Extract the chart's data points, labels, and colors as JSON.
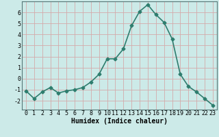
{
  "xlabel": "Humidex (Indice chaleur)",
  "x": [
    0,
    1,
    2,
    3,
    4,
    5,
    6,
    7,
    8,
    9,
    10,
    11,
    12,
    13,
    14,
    15,
    16,
    17,
    18,
    19,
    20,
    21,
    22,
    23
  ],
  "y": [
    -1.1,
    -1.8,
    -1.2,
    -0.8,
    -1.3,
    -1.1,
    -1.0,
    -0.8,
    -0.3,
    0.4,
    1.8,
    1.8,
    2.7,
    4.8,
    6.1,
    6.7,
    5.8,
    5.1,
    3.6,
    0.4,
    -0.7,
    -1.2,
    -1.8,
    -2.4
  ],
  "line_color": "#2e7d6e",
  "marker": "D",
  "marker_size": 2.5,
  "line_width": 1.2,
  "bg_color": "#cceae8",
  "grid_color": "#d4aaaa",
  "ylim": [
    -2.8,
    7.0
  ],
  "xlim": [
    -0.5,
    23.5
  ],
  "yticks": [
    -2,
    -1,
    0,
    1,
    2,
    3,
    4,
    5,
    6
  ],
  "xticks": [
    0,
    1,
    2,
    3,
    4,
    5,
    6,
    7,
    8,
    9,
    10,
    11,
    12,
    13,
    14,
    15,
    16,
    17,
    18,
    19,
    20,
    21,
    22,
    23
  ],
  "tick_fontsize": 6,
  "xlabel_fontsize": 7,
  "title_fontsize": 7
}
